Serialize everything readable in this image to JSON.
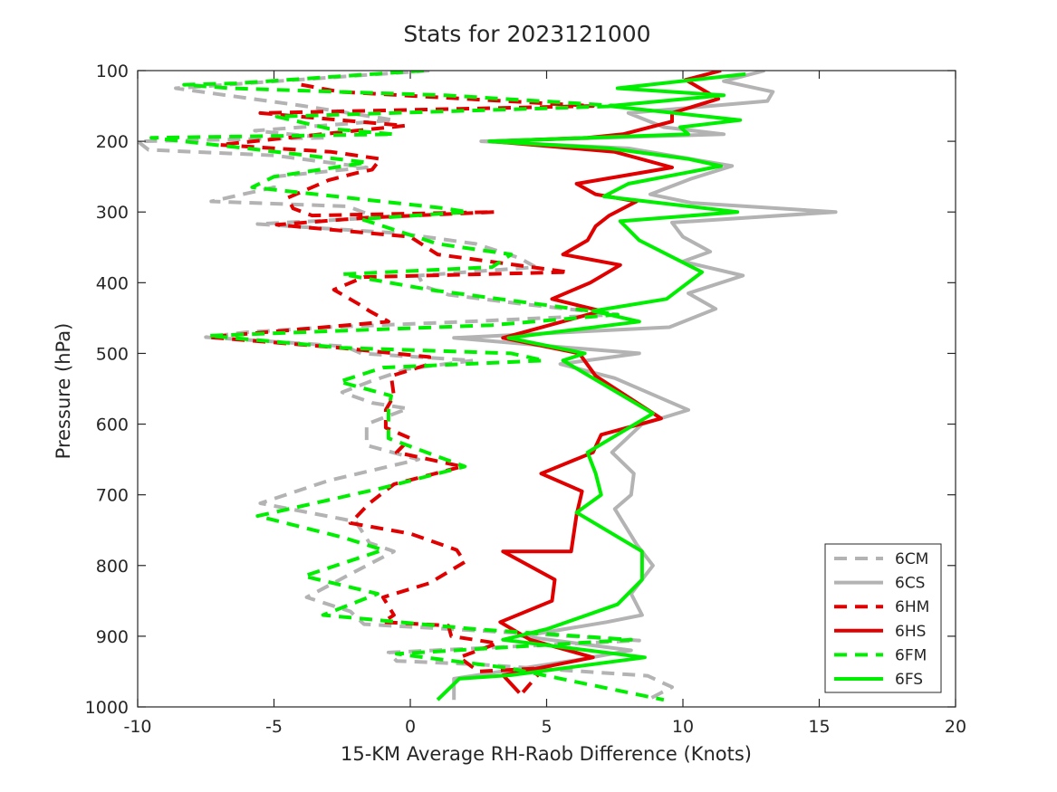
{
  "chart_data": {
    "type": "line",
    "title": "Stats for 2023121000",
    "xlabel": "15-KM Average RH-Raob Difference (Knots)",
    "ylabel": "Pressure (hPa)",
    "xlim": [
      -10,
      20
    ],
    "ylim": [
      100,
      1000
    ],
    "y_reversed": true,
    "grid": false,
    "legend_position": "bottom-right",
    "x_ticks": [
      "-10",
      "-5",
      "0",
      "5",
      "10",
      "15",
      "20"
    ],
    "y_ticks": [
      "100",
      "200",
      "300",
      "400",
      "500",
      "600",
      "700",
      "800",
      "900",
      "1000"
    ],
    "series": [
      {
        "name": "6CM",
        "color": "#b3b3b3",
        "dash": true,
        "points": [
          [
            0.7,
            100
          ],
          [
            -8.6,
            125
          ],
          [
            -3.9,
            150
          ],
          [
            -0.6,
            170
          ],
          [
            -5.7,
            185
          ],
          [
            -3.1,
            195
          ],
          [
            -10,
            200
          ],
          [
            -9.6,
            212
          ],
          [
            -5.0,
            220
          ],
          [
            -1.6,
            237
          ],
          [
            -5.0,
            250
          ],
          [
            -5.0,
            265
          ],
          [
            -7.3,
            285
          ],
          [
            -2.3,
            292
          ],
          [
            -1.2,
            308
          ],
          [
            -5.6,
            317
          ],
          [
            -0.4,
            330
          ],
          [
            2.4,
            345
          ],
          [
            4.0,
            365
          ],
          [
            4.6,
            378
          ],
          [
            0.3,
            390
          ],
          [
            0.5,
            405
          ],
          [
            1.4,
            417
          ],
          [
            4.1,
            430
          ],
          [
            7.6,
            445
          ],
          [
            2.1,
            455
          ],
          [
            -3.0,
            463
          ],
          [
            -6.0,
            470
          ],
          [
            -7.5,
            477
          ],
          [
            -2.4,
            490
          ],
          [
            -1.8,
            500
          ],
          [
            2.3,
            510
          ],
          [
            -0.1,
            522
          ],
          [
            -1.5,
            540
          ],
          [
            -2.5,
            555
          ],
          [
            -1.4,
            570
          ],
          [
            -0.1,
            578
          ],
          [
            -1.6,
            600
          ],
          [
            -1.6,
            630
          ],
          [
            0.3,
            650
          ],
          [
            -3.0,
            680
          ],
          [
            -5.5,
            712
          ],
          [
            -2.0,
            738
          ],
          [
            -1.5,
            768
          ],
          [
            -0.6,
            780
          ],
          [
            -2.2,
            812
          ],
          [
            -3.8,
            845
          ],
          [
            -2.2,
            865
          ],
          [
            -1.7,
            883
          ],
          [
            3.8,
            895
          ],
          [
            8.4,
            906
          ],
          [
            -0.8,
            923
          ],
          [
            -0.5,
            935
          ],
          [
            2.5,
            940
          ],
          [
            8.7,
            956
          ],
          [
            9.6,
            972
          ],
          [
            8.7,
            990
          ]
        ]
      },
      {
        "name": "6CS",
        "color": "#b3b3b3",
        "dash": false,
        "points": [
          [
            13.0,
            100
          ],
          [
            11.5,
            115
          ],
          [
            13.3,
            130
          ],
          [
            13.1,
            143
          ],
          [
            8.0,
            160
          ],
          [
            9.3,
            180
          ],
          [
            11.5,
            190
          ],
          [
            2.6,
            200
          ],
          [
            8.0,
            210
          ],
          [
            11.8,
            235
          ],
          [
            10.3,
            253
          ],
          [
            8.8,
            275
          ],
          [
            10.3,
            287
          ],
          [
            15.6,
            300
          ],
          [
            9.6,
            315
          ],
          [
            10.0,
            335
          ],
          [
            11.0,
            356
          ],
          [
            10.0,
            370
          ],
          [
            12.2,
            390
          ],
          [
            10.2,
            415
          ],
          [
            11.2,
            437
          ],
          [
            9.5,
            463
          ],
          [
            1.6,
            478
          ],
          [
            5.2,
            490
          ],
          [
            8.4,
            500
          ],
          [
            5.5,
            515
          ],
          [
            7.5,
            535
          ],
          [
            10.2,
            580
          ],
          [
            8.5,
            600
          ],
          [
            7.4,
            640
          ],
          [
            8.2,
            670
          ],
          [
            8.1,
            700
          ],
          [
            7.5,
            720
          ],
          [
            8.3,
            770
          ],
          [
            8.9,
            800
          ],
          [
            8.1,
            840
          ],
          [
            8.5,
            870
          ],
          [
            7.2,
            880
          ],
          [
            4.1,
            900
          ],
          [
            8.1,
            920
          ],
          [
            6.2,
            933
          ],
          [
            1.6,
            960
          ],
          [
            1.6,
            990
          ]
        ]
      },
      {
        "name": "6HM",
        "color": "#e00000",
        "dash": true,
        "points": [
          [
            -4.0,
            120
          ],
          [
            -2.6,
            130
          ],
          [
            6.7,
            150
          ],
          [
            -5.5,
            160
          ],
          [
            -0.2,
            178
          ],
          [
            -2.0,
            185
          ],
          [
            -7.0,
            205
          ],
          [
            -2.9,
            215
          ],
          [
            -1.1,
            225
          ],
          [
            -1.4,
            240
          ],
          [
            -2.0,
            245
          ],
          [
            -3.0,
            255
          ],
          [
            -4.5,
            280
          ],
          [
            -4.3,
            295
          ],
          [
            -3.6,
            305
          ],
          [
            3.1,
            300
          ],
          [
            -1.6,
            308
          ],
          [
            -4.9,
            318
          ],
          [
            0.0,
            335
          ],
          [
            1.0,
            360
          ],
          [
            5.8,
            385
          ],
          [
            -1.7,
            392
          ],
          [
            -2.8,
            410
          ],
          [
            -1.9,
            430
          ],
          [
            -1.5,
            440
          ],
          [
            -0.8,
            455
          ],
          [
            -7.4,
            477
          ],
          [
            -2.6,
            492
          ],
          [
            0.7,
            505
          ],
          [
            0.7,
            515
          ],
          [
            -0.7,
            532
          ],
          [
            -0.6,
            560
          ],
          [
            -0.9,
            580
          ],
          [
            -0.9,
            605
          ],
          [
            0.0,
            620
          ],
          [
            -0.5,
            640
          ],
          [
            0.7,
            650
          ],
          [
            1.9,
            660
          ],
          [
            -0.6,
            685
          ],
          [
            -1.5,
            712
          ],
          [
            -2.2,
            740
          ],
          [
            0.0,
            755
          ],
          [
            1.7,
            778
          ],
          [
            2.0,
            795
          ],
          [
            0.7,
            825
          ],
          [
            -1.0,
            845
          ],
          [
            -0.6,
            870
          ],
          [
            -1.0,
            880
          ],
          [
            1.4,
            885
          ],
          [
            1.5,
            900
          ],
          [
            3.2,
            910
          ],
          [
            1.8,
            930
          ],
          [
            2.5,
            950
          ],
          [
            4.9,
            945
          ],
          [
            4.0,
            985
          ]
        ]
      },
      {
        "name": "6HS",
        "color": "#e00000",
        "dash": false,
        "points": [
          [
            11.4,
            100
          ],
          [
            10.1,
            113
          ],
          [
            11.3,
            140
          ],
          [
            9.6,
            160
          ],
          [
            9.6,
            172
          ],
          [
            7.8,
            190
          ],
          [
            6.5,
            195
          ],
          [
            3.0,
            200
          ],
          [
            7.5,
            215
          ],
          [
            9.6,
            237
          ],
          [
            6.1,
            260
          ],
          [
            6.8,
            275
          ],
          [
            8.3,
            285
          ],
          [
            7.3,
            305
          ],
          [
            6.8,
            320
          ],
          [
            6.5,
            340
          ],
          [
            5.6,
            360
          ],
          [
            7.7,
            375
          ],
          [
            6.6,
            400
          ],
          [
            5.2,
            423
          ],
          [
            7.0,
            440
          ],
          [
            3.4,
            478
          ],
          [
            6.2,
            500
          ],
          [
            6.8,
            532
          ],
          [
            9.2,
            592
          ],
          [
            7.0,
            615
          ],
          [
            6.7,
            640
          ],
          [
            4.8,
            670
          ],
          [
            6.3,
            695
          ],
          [
            6.1,
            728
          ],
          [
            5.9,
            780
          ],
          [
            3.4,
            780
          ],
          [
            5.3,
            820
          ],
          [
            5.2,
            850
          ],
          [
            3.3,
            880
          ],
          [
            4.4,
            905
          ],
          [
            6.7,
            930
          ],
          [
            3.4,
            955
          ],
          [
            4.0,
            980
          ]
        ]
      },
      {
        "name": "6FM",
        "color": "#00ee00",
        "dash": true,
        "points": [
          [
            0.5,
            100
          ],
          [
            -6.4,
            118
          ],
          [
            -8.3,
            120
          ],
          [
            -6.6,
            125
          ],
          [
            1.3,
            135
          ],
          [
            7.7,
            150
          ],
          [
            -4.9,
            165
          ],
          [
            -3.0,
            182
          ],
          [
            -0.6,
            190
          ],
          [
            -9.5,
            195
          ],
          [
            -6.0,
            210
          ],
          [
            -1.6,
            230
          ],
          [
            -5.0,
            250
          ],
          [
            -5.8,
            265
          ],
          [
            1.3,
            295
          ],
          [
            2.1,
            300
          ],
          [
            -1.8,
            310
          ],
          [
            1.0,
            345
          ],
          [
            3.7,
            360
          ],
          [
            3.0,
            378
          ],
          [
            -2.5,
            388
          ],
          [
            0.7,
            410
          ],
          [
            7.6,
            445
          ],
          [
            3.0,
            460
          ],
          [
            -7.4,
            475
          ],
          [
            -2.5,
            492
          ],
          [
            3.7,
            500
          ],
          [
            4.9,
            510
          ],
          [
            -1.0,
            520
          ],
          [
            -2.6,
            540
          ],
          [
            -0.7,
            560
          ],
          [
            -0.8,
            580
          ],
          [
            -0.8,
            620
          ],
          [
            2.0,
            660
          ],
          [
            -1.0,
            690
          ],
          [
            -5.6,
            730
          ],
          [
            -2.5,
            760
          ],
          [
            -1.0,
            778
          ],
          [
            -3.9,
            815
          ],
          [
            -1.2,
            840
          ],
          [
            -3.2,
            870
          ],
          [
            2.4,
            890
          ],
          [
            8.1,
            905
          ],
          [
            -0.5,
            925
          ],
          [
            3.6,
            945
          ],
          [
            9.3,
            990
          ]
        ]
      },
      {
        "name": "6FS",
        "color": "#00ee00",
        "dash": false,
        "points": [
          [
            12.3,
            105
          ],
          [
            7.6,
            125
          ],
          [
            11.5,
            135
          ],
          [
            7.3,
            150
          ],
          [
            12.1,
            170
          ],
          [
            9.9,
            180
          ],
          [
            10.2,
            190
          ],
          [
            2.9,
            200
          ],
          [
            7.3,
            210
          ],
          [
            10.2,
            225
          ],
          [
            11.4,
            235
          ],
          [
            8.0,
            260
          ],
          [
            7.1,
            278
          ],
          [
            12.0,
            300
          ],
          [
            7.7,
            313
          ],
          [
            8.4,
            340
          ],
          [
            10.7,
            385
          ],
          [
            9.4,
            423
          ],
          [
            6.7,
            440
          ],
          [
            8.4,
            455
          ],
          [
            3.6,
            478
          ],
          [
            6.4,
            500
          ],
          [
            5.6,
            510
          ],
          [
            8.9,
            585
          ],
          [
            6.5,
            640
          ],
          [
            6.8,
            670
          ],
          [
            7.0,
            700
          ],
          [
            6.1,
            725
          ],
          [
            8.5,
            780
          ],
          [
            8.5,
            820
          ],
          [
            7.6,
            855
          ],
          [
            5.0,
            890
          ],
          [
            3.4,
            905
          ],
          [
            8.6,
            930
          ],
          [
            3.7,
            955
          ],
          [
            1.8,
            960
          ],
          [
            1.0,
            990
          ]
        ]
      }
    ]
  }
}
